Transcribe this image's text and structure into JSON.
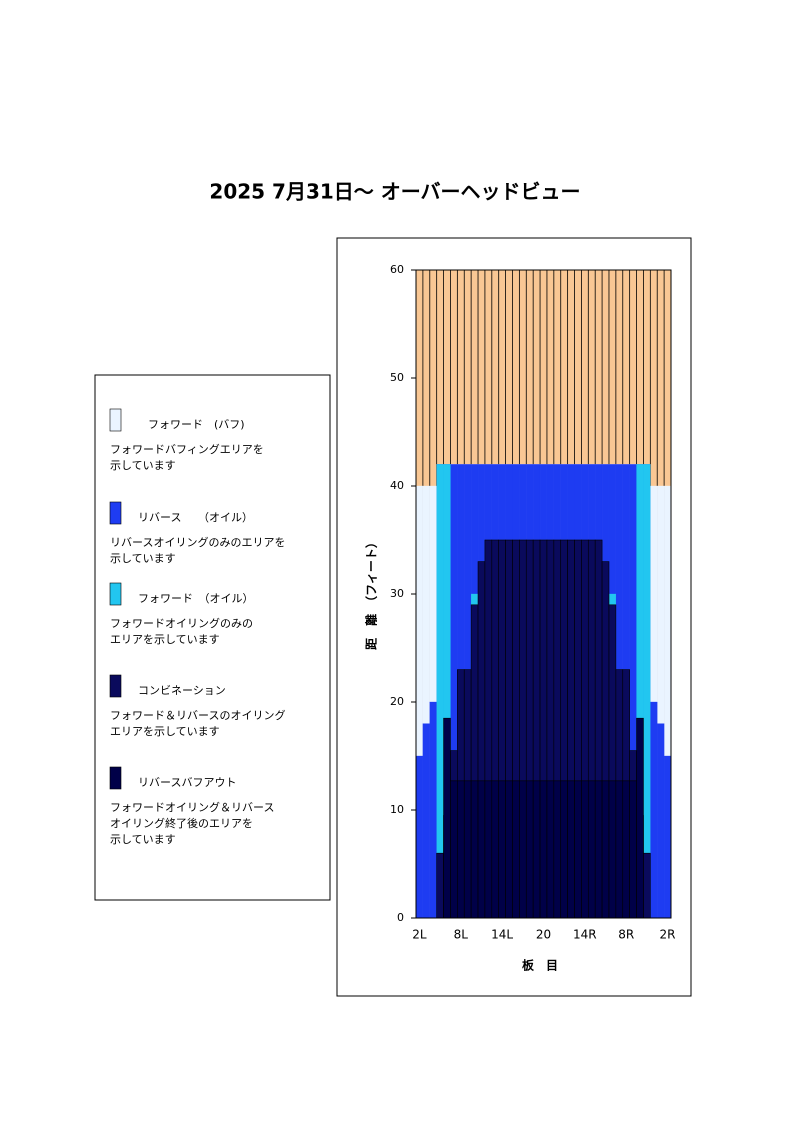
{
  "chart_data": {
    "type": "bar",
    "title": "2025 7月31日～ オーバーヘッドビュー",
    "y_label": "距　離　（フィート）",
    "x_label": "板　目",
    "categories": [
      "2L",
      null,
      null,
      null,
      null,
      null,
      "8L",
      null,
      null,
      null,
      null,
      null,
      "14L",
      null,
      null,
      null,
      null,
      null,
      "20",
      null,
      null,
      null,
      null,
      null,
      "14R",
      null,
      null,
      null,
      null,
      null,
      "8R",
      null,
      null,
      null,
      null,
      null,
      "2R"
    ],
    "ylim": [
      0,
      60
    ],
    "yticks": [
      0,
      10,
      20,
      30,
      40,
      50,
      60
    ],
    "series": [
      {
        "name": "フォワード　(バフ)",
        "description": [
          "フォワードバフィングエリアを",
          "示しています"
        ],
        "color": "#eaf4ff",
        "values": [
          40,
          40,
          40,
          42,
          42,
          42,
          42,
          42,
          42,
          42,
          42,
          42,
          42,
          42,
          42,
          42,
          42,
          42,
          42,
          42,
          42,
          42,
          42,
          42,
          42,
          42,
          42,
          42,
          42,
          42,
          42,
          42,
          42,
          42,
          40,
          40,
          40
        ]
      },
      {
        "name": "リバース　　（オイル）",
        "description": [
          "リバースオイリングのみのエリアを",
          "示しています"
        ],
        "color": "#1e3cf2",
        "values": [
          15,
          18,
          20,
          42,
          42,
          42,
          42,
          42,
          42,
          42,
          42,
          42,
          42,
          42,
          42,
          42,
          42,
          42,
          42,
          42,
          42,
          42,
          42,
          42,
          42,
          42,
          42,
          42,
          42,
          42,
          42,
          42,
          42,
          42,
          20,
          18,
          15
        ]
      },
      {
        "name": "フォワード　（オイル）",
        "description": [
          "フォワードオイリングのみの",
          "エリアを示しています"
        ],
        "color": "#22c6f0",
        "values": [
          0,
          0,
          0,
          42,
          42,
          0,
          0,
          0,
          30,
          0,
          0,
          0,
          0,
          0,
          0,
          0,
          0,
          0,
          0,
          0,
          0,
          0,
          0,
          0,
          0,
          0,
          0,
          0,
          30,
          0,
          0,
          0,
          42,
          42,
          0,
          0,
          0
        ]
      },
      {
        "name": "コンビネーション",
        "description": [
          "フォワード＆リバースのオイリング",
          "エリアを示しています"
        ],
        "color": "#0a0a5c",
        "values": [
          0,
          0,
          0,
          6,
          9.5,
          15.5,
          23,
          23,
          29,
          33,
          35,
          35,
          35,
          35,
          35,
          35,
          35,
          35,
          35,
          35,
          35,
          35,
          35,
          35,
          35,
          35,
          35,
          33,
          29,
          23,
          23,
          15.5,
          9.5,
          6,
          0,
          0,
          0
        ]
      },
      {
        "name": "リバースバフアウト",
        "description": [
          "フォワードオイリング＆リバース",
          "オイリング終了後のエリアを",
          "示しています"
        ],
        "color": "#000048",
        "values": [
          0,
          0,
          0,
          0,
          18.5,
          12.7,
          12.7,
          12.7,
          12.7,
          12.7,
          12.7,
          12.7,
          12.7,
          12.7,
          12.7,
          12.7,
          12.7,
          12.7,
          12.7,
          12.7,
          12.7,
          12.7,
          12.7,
          12.7,
          12.7,
          12.7,
          12.7,
          12.7,
          12.7,
          12.7,
          12.7,
          12.7,
          18.5,
          0,
          0,
          0,
          0
        ]
      }
    ]
  }
}
